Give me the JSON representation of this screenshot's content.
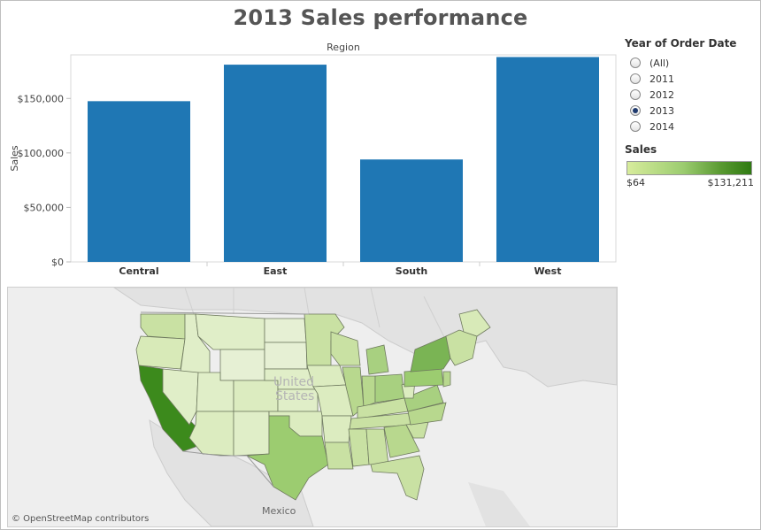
{
  "page": {
    "title": "2013 Sales performance"
  },
  "chart_data": {
    "type": "bar",
    "header": "Region",
    "categories": [
      "Central",
      "East",
      "South",
      "West"
    ],
    "values": [
      147500,
      181000,
      94000,
      188000
    ],
    "ylabel": "Sales",
    "ylim": [
      0,
      190000
    ],
    "yticks": [
      0,
      50000,
      100000,
      150000
    ],
    "ytick_labels": [
      "$0",
      "$50,000",
      "$100,000",
      "$150,000"
    ],
    "bar_color": "#1f77b4",
    "grid": false
  },
  "filter": {
    "title": "Year of Order Date",
    "options": [
      "(All)",
      "2011",
      "2012",
      "2013",
      "2014"
    ],
    "selected": "2013"
  },
  "legend": {
    "title": "Sales",
    "min_label": "$64",
    "max_label": "$131,211",
    "color_low": "#d7ec9c",
    "color_high": "#2f7a12"
  },
  "map": {
    "country_label_line1": "United",
    "country_label_line2": "States",
    "neighbor_label": "Mexico",
    "attribution": "© OpenStreetMap contributors"
  }
}
